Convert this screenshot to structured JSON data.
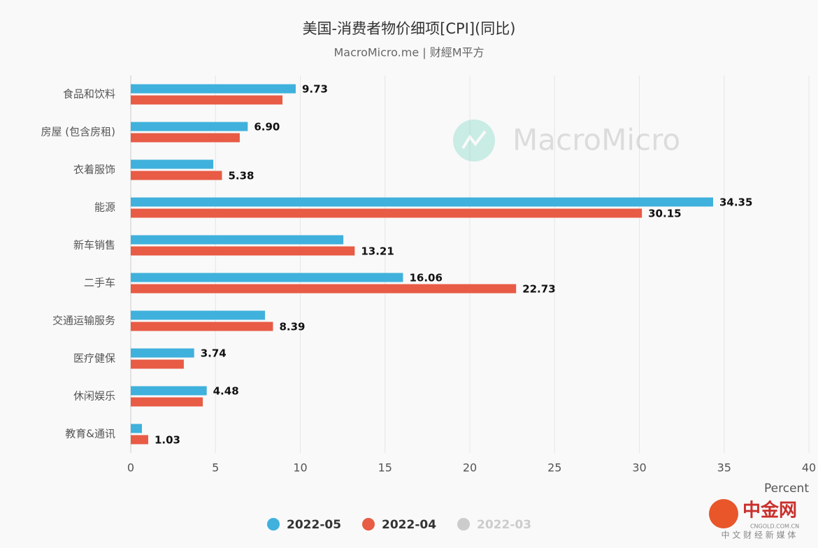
{
  "chart_data": {
    "type": "hbar",
    "title": "美国-消费者物价细项[CPI](同比)",
    "subtitle": "MacroMicro.me | 财經M平方",
    "watermark": "MacroMicro",
    "corner_logo": {
      "name": "中金网",
      "url": "CNGOLD.COM.CN",
      "slogan": "中 文 财 经 新 媒 体"
    },
    "x_label": "Percent",
    "categories": [
      "食品和饮料",
      "房屋 (包含房租)",
      "衣着服饰",
      "能源",
      "新车销售",
      "二手车",
      "交通运输服务",
      "医疗健保",
      "休闲娱乐",
      "教育&通讯"
    ],
    "series": [
      {
        "name": "2022-05",
        "color": "#3fb1dc",
        "values": [
          9.73,
          6.9,
          4.87,
          34.35,
          12.54,
          16.06,
          7.92,
          3.74,
          4.48,
          0.66
        ],
        "value_labels": [
          "9.73",
          "6.90",
          null,
          "34.35",
          null,
          "16.06",
          null,
          "3.74",
          "4.48",
          null
        ]
      },
      {
        "name": "2022-04",
        "color": "#e85b45",
        "values": [
          8.95,
          6.43,
          5.38,
          30.15,
          13.21,
          22.73,
          8.39,
          3.13,
          4.25,
          1.03
        ],
        "value_labels": [
          null,
          null,
          "5.38",
          "30.15",
          "13.21",
          "22.73",
          "8.39",
          null,
          null,
          "1.03"
        ]
      },
      {
        "name": "2022-03",
        "color": "#cccccc",
        "hidden": true,
        "values": [
          null,
          null,
          null,
          null,
          null,
          null,
          null,
          null,
          null,
          null
        ]
      }
    ],
    "xlim": [
      0,
      40
    ],
    "xticks": [
      0,
      5,
      10,
      15,
      20,
      25,
      30,
      35,
      40
    ],
    "grid": true,
    "legend": "bottom"
  }
}
